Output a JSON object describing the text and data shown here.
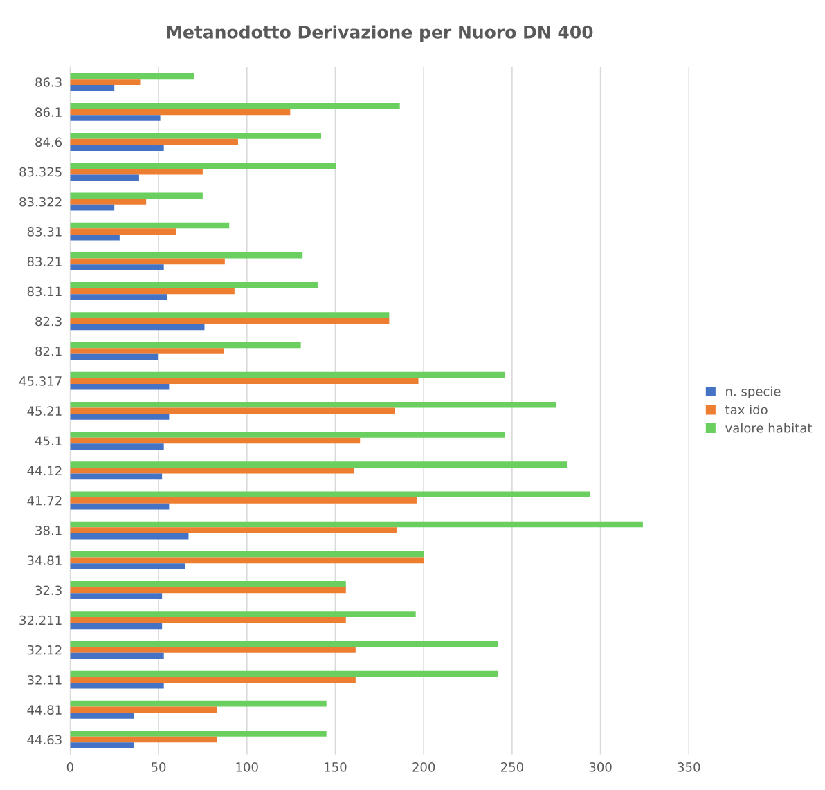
{
  "chart_data": {
    "type": "bar",
    "orientation": "horizontal",
    "title": "Metanodotto Derivazione per Nuoro DN 400",
    "categories": [
      "86.3",
      "86.1",
      "84.6",
      "83.325",
      "83.322",
      "83.31",
      "83.21",
      "83.11",
      "82.3",
      "82.1",
      "45.317",
      "45.21",
      "45.1",
      "44.12",
      "41.72",
      "38.1",
      "34.81",
      "32.3",
      "32.211",
      "32.12",
      "32.11",
      "44.81",
      "44.63"
    ],
    "series": [
      {
        "name": "valore habitat",
        "color": "#6acf5e",
        "values": [
          70,
          186.5,
          142,
          150.5,
          75,
          90,
          131.5,
          140,
          180.5,
          130.5,
          246,
          275,
          246,
          281,
          294,
          324,
          200,
          156,
          195.5,
          242,
          242,
          145,
          145
        ]
      },
      {
        "name": "tax ido",
        "color": "#ed7d31",
        "values": [
          40,
          124.5,
          95,
          75,
          43,
          60,
          87.5,
          93,
          180.5,
          87,
          197,
          183.5,
          164,
          160.5,
          196,
          185,
          200,
          156,
          156,
          161.5,
          161.5,
          83,
          83
        ]
      },
      {
        "name": "n. specie",
        "color": "#4472c4",
        "values": [
          25,
          51,
          53,
          39,
          25,
          28,
          53,
          55,
          76,
          50,
          56,
          56,
          53,
          52,
          56,
          67,
          65,
          52,
          52,
          53,
          53,
          36,
          36
        ]
      }
    ],
    "xlim": [
      0,
      350
    ],
    "xticks": [
      0,
      50,
      100,
      150,
      200,
      250,
      300,
      350
    ],
    "grid": "x",
    "legend": "right"
  }
}
